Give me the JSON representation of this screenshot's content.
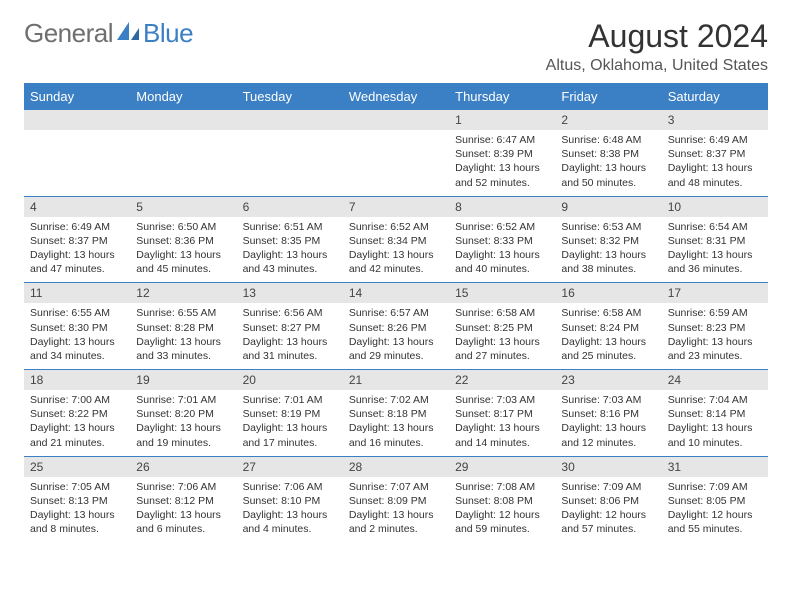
{
  "logo": {
    "text1": "General",
    "text2": "Blue"
  },
  "title": "August 2024",
  "location": "Altus, Oklahoma, United States",
  "colors": {
    "header_bg": "#3b7fc4",
    "header_text": "#ffffff",
    "date_row_bg": "#e6e6e6",
    "week_divider": "#3b7fc4",
    "page_bg": "#ffffff",
    "body_text": "#333333",
    "logo_gray": "#6f6f6f",
    "logo_blue": "#3b7fc4"
  },
  "day_headers": [
    "Sunday",
    "Monday",
    "Tuesday",
    "Wednesday",
    "Thursday",
    "Friday",
    "Saturday"
  ],
  "weeks": [
    [
      null,
      null,
      null,
      null,
      {
        "d": "1",
        "sr": "Sunrise: 6:47 AM",
        "ss": "Sunset: 8:39 PM",
        "dl": "Daylight: 13 hours and 52 minutes."
      },
      {
        "d": "2",
        "sr": "Sunrise: 6:48 AM",
        "ss": "Sunset: 8:38 PM",
        "dl": "Daylight: 13 hours and 50 minutes."
      },
      {
        "d": "3",
        "sr": "Sunrise: 6:49 AM",
        "ss": "Sunset: 8:37 PM",
        "dl": "Daylight: 13 hours and 48 minutes."
      }
    ],
    [
      {
        "d": "4",
        "sr": "Sunrise: 6:49 AM",
        "ss": "Sunset: 8:37 PM",
        "dl": "Daylight: 13 hours and 47 minutes."
      },
      {
        "d": "5",
        "sr": "Sunrise: 6:50 AM",
        "ss": "Sunset: 8:36 PM",
        "dl": "Daylight: 13 hours and 45 minutes."
      },
      {
        "d": "6",
        "sr": "Sunrise: 6:51 AM",
        "ss": "Sunset: 8:35 PM",
        "dl": "Daylight: 13 hours and 43 minutes."
      },
      {
        "d": "7",
        "sr": "Sunrise: 6:52 AM",
        "ss": "Sunset: 8:34 PM",
        "dl": "Daylight: 13 hours and 42 minutes."
      },
      {
        "d": "8",
        "sr": "Sunrise: 6:52 AM",
        "ss": "Sunset: 8:33 PM",
        "dl": "Daylight: 13 hours and 40 minutes."
      },
      {
        "d": "9",
        "sr": "Sunrise: 6:53 AM",
        "ss": "Sunset: 8:32 PM",
        "dl": "Daylight: 13 hours and 38 minutes."
      },
      {
        "d": "10",
        "sr": "Sunrise: 6:54 AM",
        "ss": "Sunset: 8:31 PM",
        "dl": "Daylight: 13 hours and 36 minutes."
      }
    ],
    [
      {
        "d": "11",
        "sr": "Sunrise: 6:55 AM",
        "ss": "Sunset: 8:30 PM",
        "dl": "Daylight: 13 hours and 34 minutes."
      },
      {
        "d": "12",
        "sr": "Sunrise: 6:55 AM",
        "ss": "Sunset: 8:28 PM",
        "dl": "Daylight: 13 hours and 33 minutes."
      },
      {
        "d": "13",
        "sr": "Sunrise: 6:56 AM",
        "ss": "Sunset: 8:27 PM",
        "dl": "Daylight: 13 hours and 31 minutes."
      },
      {
        "d": "14",
        "sr": "Sunrise: 6:57 AM",
        "ss": "Sunset: 8:26 PM",
        "dl": "Daylight: 13 hours and 29 minutes."
      },
      {
        "d": "15",
        "sr": "Sunrise: 6:58 AM",
        "ss": "Sunset: 8:25 PM",
        "dl": "Daylight: 13 hours and 27 minutes."
      },
      {
        "d": "16",
        "sr": "Sunrise: 6:58 AM",
        "ss": "Sunset: 8:24 PM",
        "dl": "Daylight: 13 hours and 25 minutes."
      },
      {
        "d": "17",
        "sr": "Sunrise: 6:59 AM",
        "ss": "Sunset: 8:23 PM",
        "dl": "Daylight: 13 hours and 23 minutes."
      }
    ],
    [
      {
        "d": "18",
        "sr": "Sunrise: 7:00 AM",
        "ss": "Sunset: 8:22 PM",
        "dl": "Daylight: 13 hours and 21 minutes."
      },
      {
        "d": "19",
        "sr": "Sunrise: 7:01 AM",
        "ss": "Sunset: 8:20 PM",
        "dl": "Daylight: 13 hours and 19 minutes."
      },
      {
        "d": "20",
        "sr": "Sunrise: 7:01 AM",
        "ss": "Sunset: 8:19 PM",
        "dl": "Daylight: 13 hours and 17 minutes."
      },
      {
        "d": "21",
        "sr": "Sunrise: 7:02 AM",
        "ss": "Sunset: 8:18 PM",
        "dl": "Daylight: 13 hours and 16 minutes."
      },
      {
        "d": "22",
        "sr": "Sunrise: 7:03 AM",
        "ss": "Sunset: 8:17 PM",
        "dl": "Daylight: 13 hours and 14 minutes."
      },
      {
        "d": "23",
        "sr": "Sunrise: 7:03 AM",
        "ss": "Sunset: 8:16 PM",
        "dl": "Daylight: 13 hours and 12 minutes."
      },
      {
        "d": "24",
        "sr": "Sunrise: 7:04 AM",
        "ss": "Sunset: 8:14 PM",
        "dl": "Daylight: 13 hours and 10 minutes."
      }
    ],
    [
      {
        "d": "25",
        "sr": "Sunrise: 7:05 AM",
        "ss": "Sunset: 8:13 PM",
        "dl": "Daylight: 13 hours and 8 minutes."
      },
      {
        "d": "26",
        "sr": "Sunrise: 7:06 AM",
        "ss": "Sunset: 8:12 PM",
        "dl": "Daylight: 13 hours and 6 minutes."
      },
      {
        "d": "27",
        "sr": "Sunrise: 7:06 AM",
        "ss": "Sunset: 8:10 PM",
        "dl": "Daylight: 13 hours and 4 minutes."
      },
      {
        "d": "28",
        "sr": "Sunrise: 7:07 AM",
        "ss": "Sunset: 8:09 PM",
        "dl": "Daylight: 13 hours and 2 minutes."
      },
      {
        "d": "29",
        "sr": "Sunrise: 7:08 AM",
        "ss": "Sunset: 8:08 PM",
        "dl": "Daylight: 12 hours and 59 minutes."
      },
      {
        "d": "30",
        "sr": "Sunrise: 7:09 AM",
        "ss": "Sunset: 8:06 PM",
        "dl": "Daylight: 12 hours and 57 minutes."
      },
      {
        "d": "31",
        "sr": "Sunrise: 7:09 AM",
        "ss": "Sunset: 8:05 PM",
        "dl": "Daylight: 12 hours and 55 minutes."
      }
    ]
  ]
}
